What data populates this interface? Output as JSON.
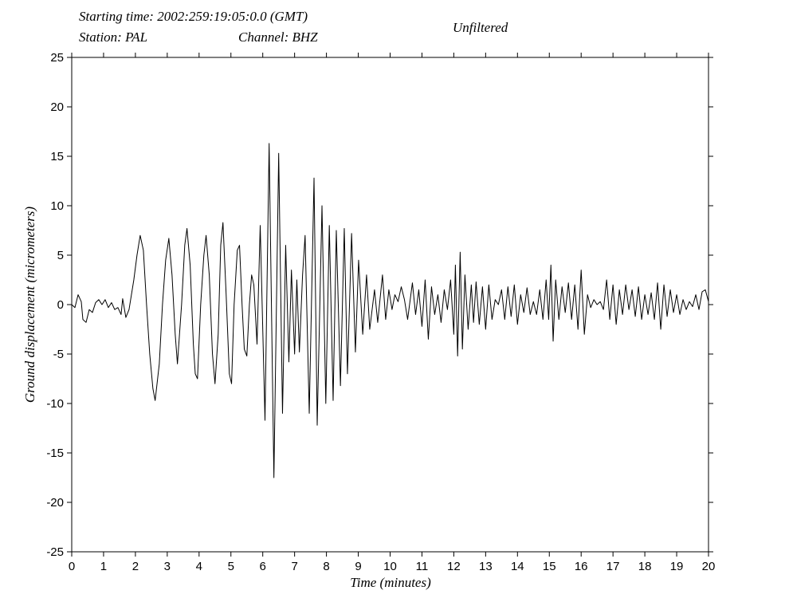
{
  "chart_data": {
    "type": "line",
    "starting_time": "Starting time: 2002:259:19:05:0.0 (GMT)",
    "station": "Station: PAL",
    "channel": "Channel: BHZ",
    "subtitle": "Unfiltered",
    "xlabel": "Time (minutes)",
    "ylabel": "Ground displacement (micrometers)",
    "color": "#000000",
    "xlim": [
      0,
      20
    ],
    "ylim": [
      -25,
      25
    ],
    "xticks": [
      0,
      1,
      2,
      3,
      4,
      5,
      6,
      7,
      8,
      9,
      10,
      11,
      12,
      13,
      14,
      15,
      16,
      17,
      18,
      19,
      20
    ],
    "yticks": [
      -25,
      -20,
      -15,
      -10,
      -5,
      0,
      5,
      10,
      15,
      20,
      25
    ],
    "x": [
      0,
      0.1,
      0.2,
      0.3,
      0.35,
      0.45,
      0.55,
      0.65,
      0.75,
      0.85,
      0.95,
      1.05,
      1.15,
      1.25,
      1.35,
      1.45,
      1.55,
      1.6,
      1.7,
      1.8,
      1.85,
      1.95,
      2.05,
      2.15,
      2.25,
      2.35,
      2.45,
      2.55,
      2.62,
      2.75,
      2.85,
      2.95,
      3.05,
      3.15,
      3.25,
      3.32,
      3.45,
      3.55,
      3.62,
      3.72,
      3.82,
      3.88,
      3.95,
      4.05,
      4.15,
      4.22,
      4.32,
      4.42,
      4.5,
      4.6,
      4.68,
      4.75,
      4.85,
      4.95,
      5.02,
      5.1,
      5.2,
      5.27,
      5.35,
      5.42,
      5.5,
      5.58,
      5.65,
      5.72,
      5.82,
      5.92,
      6.07,
      6.2,
      6.35,
      6.5,
      6.62,
      6.72,
      6.82,
      6.9,
      7.0,
      7.07,
      7.15,
      7.25,
      7.33,
      7.46,
      7.61,
      7.71,
      7.86,
      7.98,
      8.09,
      8.21,
      8.31,
      8.44,
      8.56,
      8.66,
      8.79,
      8.91,
      9.01,
      9.14,
      9.26,
      9.36,
      9.51,
      9.61,
      9.76,
      9.86,
      9.96,
      10.06,
      10.15,
      10.25,
      10.35,
      10.45,
      10.55,
      10.7,
      10.8,
      10.9,
      11.0,
      11.1,
      11.2,
      11.3,
      11.4,
      11.5,
      11.6,
      11.7,
      11.8,
      11.9,
      12.0,
      12.05,
      12.12,
      12.2,
      12.27,
      12.35,
      12.45,
      12.55,
      12.62,
      12.7,
      12.8,
      12.9,
      13.0,
      13.1,
      13.2,
      13.3,
      13.4,
      13.5,
      13.6,
      13.7,
      13.8,
      13.9,
      14.0,
      14.1,
      14.2,
      14.3,
      14.4,
      14.5,
      14.6,
      14.7,
      14.8,
      14.9,
      14.98,
      15.05,
      15.12,
      15.2,
      15.3,
      15.4,
      15.5,
      15.6,
      15.7,
      15.8,
      15.9,
      16.0,
      16.1,
      16.2,
      16.3,
      16.4,
      16.5,
      16.6,
      16.7,
      16.8,
      16.9,
      17.0,
      17.1,
      17.2,
      17.3,
      17.4,
      17.5,
      17.6,
      17.7,
      17.8,
      17.9,
      18.0,
      18.1,
      18.2,
      18.3,
      18.4,
      18.5,
      18.6,
      18.7,
      18.8,
      18.9,
      19.0,
      19.1,
      19.2,
      19.3,
      19.4,
      19.5,
      19.6,
      19.7,
      19.8,
      19.9,
      20.0
    ],
    "values": [
      0,
      -0.3,
      1.0,
      0.3,
      -1.5,
      -1.8,
      -0.5,
      -0.8,
      0.2,
      0.5,
      0,
      0.5,
      -0.3,
      0.2,
      -0.5,
      -0.3,
      -1.0,
      0.6,
      -1.3,
      -0.5,
      0.5,
      2.5,
      5,
      7,
      5.5,
      0,
      -5,
      -8.5,
      -9.7,
      -6,
      0,
      4.5,
      6.7,
      3,
      -3,
      -6,
      0,
      6,
      7.7,
      4,
      -4,
      -7,
      -7.5,
      0,
      5,
      7,
      3,
      -5,
      -8,
      -3,
      6,
      8.3,
      1,
      -7,
      -8,
      0,
      5.5,
      6,
      0,
      -4.5,
      -5.2,
      0,
      3,
      2,
      -4,
      8,
      -11.7,
      16.3,
      -17.5,
      15.3,
      -11,
      6,
      -5.8,
      3.5,
      -5,
      2.5,
      -4.8,
      3,
      7,
      -11,
      12.8,
      -12.2,
      10,
      -10,
      8,
      -9.7,
      7.5,
      -8.2,
      7.7,
      -7,
      7.2,
      -4.8,
      4.5,
      -3,
      3,
      -2.5,
      1.5,
      -1.8,
      3,
      -1.5,
      1.5,
      -0.5,
      1,
      0.3,
      1.8,
      0.5,
      -1.5,
      2.2,
      -1,
      1.5,
      -2.2,
      2.5,
      -3.5,
      1.8,
      -1,
      1,
      -1.8,
      1.5,
      -0.5,
      2.5,
      -3,
      4,
      -5.2,
      5.3,
      -4.5,
      3,
      -2.5,
      2,
      -1.8,
      2.3,
      -2,
      1.8,
      -2.5,
      2,
      -1.5,
      0.5,
      0,
      1.5,
      -1.5,
      1.8,
      -1.2,
      2,
      -2,
      1,
      -0.8,
      1.7,
      -1,
      0.3,
      -1,
      1.5,
      -1.5,
      2.5,
      -1.5,
      4,
      -3.7,
      2.5,
      -1.5,
      1.8,
      -0.8,
      2.2,
      -1.5,
      2,
      -2.5,
      3.5,
      -3,
      1,
      -0.3,
      0.5,
      0,
      0.3,
      -0.5,
      2.5,
      -1.5,
      2,
      -2,
      1.5,
      -1,
      2,
      -0.5,
      1.5,
      -1.2,
      1.8,
      -1.5,
      1,
      -1,
      1.2,
      -1.5,
      2.2,
      -2.5,
      2,
      -1.2,
      1.5,
      -0.8,
      1,
      -1,
      0.5,
      -0.5,
      0.3,
      -0.2,
      1,
      -0.5,
      1.3,
      1.5,
      0.3
    ]
  }
}
